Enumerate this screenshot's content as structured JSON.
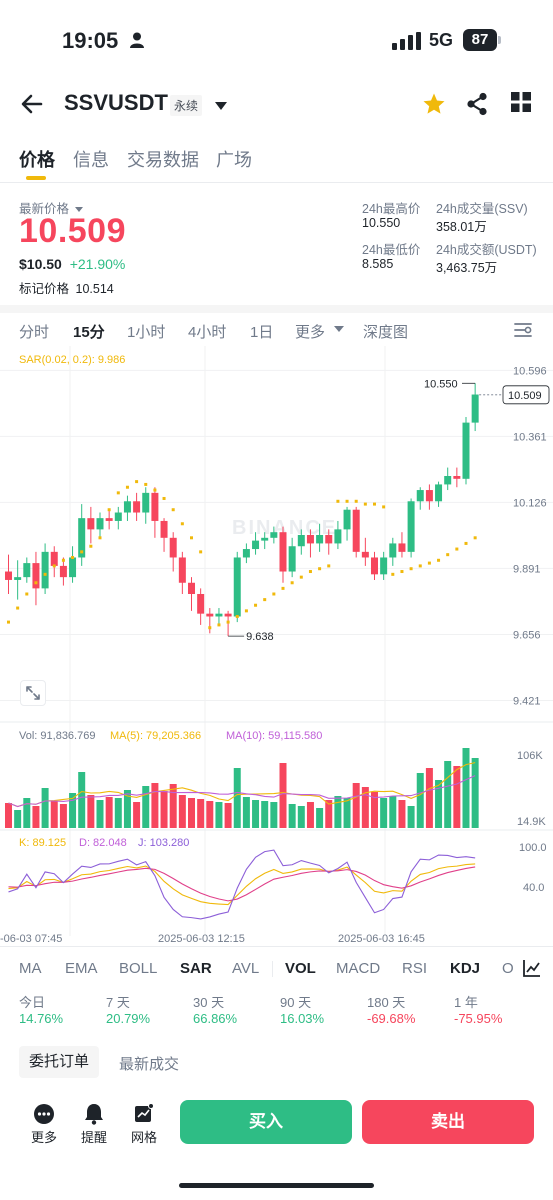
{
  "status": {
    "time": "19:05",
    "network": "5G",
    "battery": "87"
  },
  "header": {
    "symbol": "SSVUSDT",
    "contract": "永续"
  },
  "tabs": [
    "价格",
    "信息",
    "交易数据",
    "广场"
  ],
  "price": {
    "latest_label": "最新价格",
    "latest": "10.509",
    "usd": "$10.50",
    "change": "+21.90%",
    "mark_label": "标记价格",
    "mark": "10.514"
  },
  "stats": {
    "high_label": "24h最高价",
    "high": "10.550",
    "low_label": "24h最低价",
    "low": "8.585",
    "vol_label": "24h成交量(SSV)",
    "vol": "358.01万",
    "amt_label": "24h成交额(USDT)",
    "amt": "3,463.75万"
  },
  "timeframes": [
    "分时",
    "15分",
    "1小时",
    "4小时",
    "1日",
    "更多",
    "深度图"
  ],
  "chart_data": {
    "type": "candlestick",
    "indicator": "SAR(0.02, 0.2): 9.986",
    "price_axis": [
      "10.596",
      "10.361",
      "10.126",
      "9.891",
      "9.656",
      "9.421"
    ],
    "current_price": "10.509",
    "high_marker": "10.550",
    "low_marker": "9.638",
    "watermark": "BINANCE",
    "volume": {
      "label": "Vol: 91,836.769",
      "ma5": "MA(5): 79,205.366",
      "ma10": "MA(10): 59,115.580",
      "axis": [
        "106K",
        "14.9K"
      ]
    },
    "kdj": {
      "k": "K: 89.125",
      "d": "D: 82.048",
      "j": "J: 103.280",
      "axis": [
        "100.0",
        "40.0"
      ]
    },
    "time_axis": [
      "-06-03 07:45",
      "2025-06-03 12:15",
      "2025-06-03 16:45"
    ],
    "candles": [
      [
        9.88,
        9.85,
        9.94,
        9.8
      ],
      [
        9.85,
        9.86,
        9.92,
        9.78
      ],
      [
        9.86,
        9.91,
        9.93,
        9.84
      ],
      [
        9.91,
        9.82,
        9.95,
        9.76
      ],
      [
        9.82,
        9.95,
        9.98,
        9.8
      ],
      [
        9.95,
        9.9,
        9.97,
        9.86
      ],
      [
        9.9,
        9.86,
        9.93,
        9.83
      ],
      [
        9.86,
        9.93,
        9.97,
        9.84
      ],
      [
        9.93,
        10.07,
        10.12,
        9.9
      ],
      [
        10.07,
        10.03,
        10.11,
        9.98
      ],
      [
        10.03,
        10.07,
        10.09,
        10.0
      ],
      [
        10.07,
        10.06,
        10.1,
        10.03
      ],
      [
        10.06,
        10.09,
        10.11,
        10.03
      ],
      [
        10.09,
        10.13,
        10.15,
        10.06
      ],
      [
        10.13,
        10.09,
        10.16,
        10.06
      ],
      [
        10.09,
        10.16,
        10.18,
        10.05
      ],
      [
        10.16,
        10.06,
        10.18,
        10.0
      ],
      [
        10.06,
        10.0,
        10.07,
        9.95
      ],
      [
        10.0,
        9.93,
        10.02,
        9.88
      ],
      [
        9.93,
        9.84,
        9.95,
        9.8
      ],
      [
        9.84,
        9.8,
        9.86,
        9.74
      ],
      [
        9.8,
        9.73,
        9.82,
        9.69
      ],
      [
        9.73,
        9.72,
        9.75,
        9.66
      ],
      [
        9.72,
        9.73,
        9.75,
        9.69
      ],
      [
        9.73,
        9.72,
        9.74,
        9.65
      ],
      [
        9.72,
        9.93,
        9.95,
        9.7
      ],
      [
        9.93,
        9.96,
        9.98,
        9.91
      ],
      [
        9.96,
        9.99,
        10.02,
        9.94
      ],
      [
        9.99,
        10.0,
        10.02,
        9.96
      ],
      [
        10.0,
        10.02,
        10.04,
        9.98
      ],
      [
        10.02,
        9.88,
        10.04,
        9.84
      ],
      [
        9.88,
        9.97,
        10.0,
        9.86
      ],
      [
        9.97,
        10.01,
        10.03,
        9.94
      ],
      [
        10.01,
        9.98,
        10.03,
        9.93
      ],
      [
        9.98,
        10.01,
        10.05,
        9.95
      ],
      [
        10.01,
        9.98,
        10.03,
        9.94
      ],
      [
        9.98,
        10.03,
        10.06,
        9.96
      ],
      [
        10.03,
        10.1,
        10.11,
        9.99
      ],
      [
        10.1,
        9.95,
        10.11,
        9.93
      ],
      [
        9.95,
        9.93,
        10.0,
        9.9
      ],
      [
        9.93,
        9.87,
        9.95,
        9.85
      ],
      [
        9.87,
        9.93,
        9.95,
        9.85
      ],
      [
        9.93,
        9.98,
        10.0,
        9.9
      ],
      [
        9.98,
        9.95,
        10.02,
        9.93
      ],
      [
        9.95,
        10.13,
        10.14,
        9.93
      ],
      [
        10.13,
        10.17,
        10.18,
        10.1
      ],
      [
        10.17,
        10.13,
        10.19,
        10.1
      ],
      [
        10.13,
        10.19,
        10.2,
        10.11
      ],
      [
        10.19,
        10.22,
        10.25,
        10.17
      ],
      [
        10.22,
        10.21,
        10.25,
        10.18
      ],
      [
        10.21,
        10.41,
        10.43,
        10.19
      ],
      [
        10.41,
        10.51,
        10.55,
        10.38
      ]
    ],
    "sar": [
      9.7,
      9.75,
      9.8,
      9.84,
      9.87,
      9.9,
      9.92,
      9.93,
      9.95,
      9.97,
      10.0,
      10.1,
      10.16,
      10.18,
      10.2,
      10.19,
      10.17,
      10.14,
      10.1,
      10.05,
      10.0,
      9.95,
      9.68,
      9.69,
      9.7,
      9.72,
      9.74,
      9.76,
      9.78,
      9.8,
      9.82,
      9.84,
      9.86,
      9.88,
      9.89,
      9.9,
      10.13,
      10.13,
      10.13,
      10.12,
      10.12,
      10.11,
      9.87,
      9.88,
      9.89,
      9.9,
      9.91,
      9.92,
      9.94,
      9.96,
      9.98,
      10.0
    ],
    "volumes": [
      25,
      18,
      30,
      22,
      40,
      27,
      24,
      35,
      56,
      33,
      28,
      31,
      30,
      38,
      26,
      42,
      45,
      37,
      44,
      33,
      30,
      29,
      27,
      26,
      25,
      60,
      31,
      28,
      27,
      26,
      65,
      24,
      22,
      26,
      20,
      28,
      32,
      30,
      45,
      41,
      36,
      30,
      32,
      28,
      22,
      55,
      60,
      48,
      67,
      62,
      80,
      70
    ]
  },
  "indicators": {
    "main": [
      "MA",
      "EMA",
      "BOLL",
      "SAR",
      "AVL"
    ],
    "sub": [
      "VOL",
      "MACD",
      "RSI",
      "KDJ",
      "O"
    ]
  },
  "performance": [
    {
      "label": "今日",
      "value": "14.76%",
      "up": true
    },
    {
      "label": "7 天",
      "value": "20.79%",
      "up": true
    },
    {
      "label": "30 天",
      "value": "66.86%",
      "up": true
    },
    {
      "label": "90 天",
      "value": "16.03%",
      "up": true
    },
    {
      "label": "180 天",
      "value": "-69.68%",
      "up": false
    },
    {
      "label": "1 年",
      "value": "-75.95%",
      "up": false
    }
  ],
  "order_tabs": {
    "orders": "委托订单",
    "latest": "最新成交"
  },
  "bottom": {
    "more": "更多",
    "alert": "提醒",
    "grid": "网格",
    "buy": "买入",
    "sell": "卖出"
  },
  "colors": {
    "up": "#2ebd85",
    "down": "#f6465d",
    "accent": "#f0b90b",
    "sar": "#f0b90b",
    "ma5": "#f0b90b",
    "ma10": "#c060d8"
  }
}
